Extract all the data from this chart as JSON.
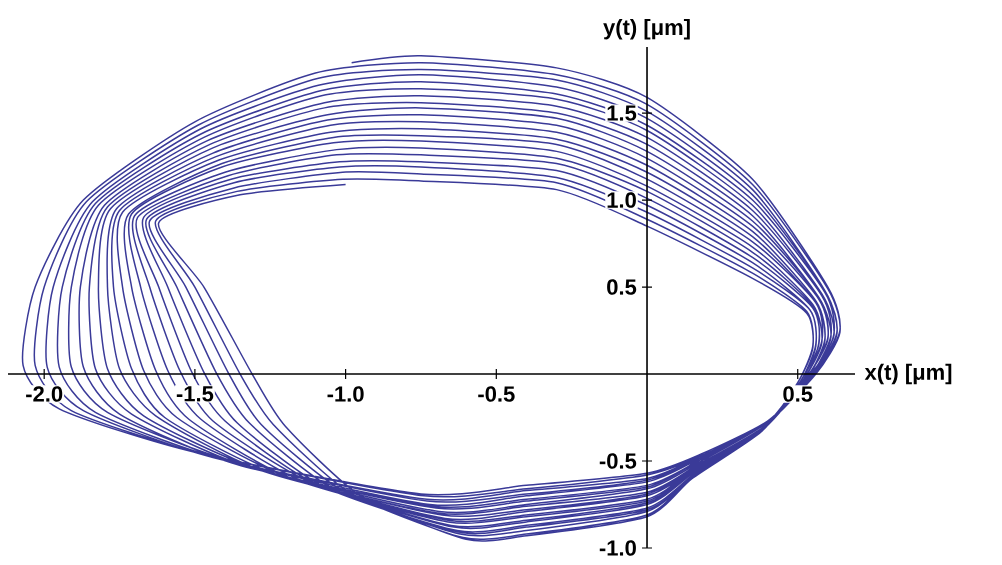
{
  "chart_data": {
    "type": "line",
    "xlabel": "x(t) [μm]",
    "ylabel": "y(t) [μm]",
    "xlim": [
      -2.12,
      0.69
    ],
    "ylim": [
      -1.0,
      1.88
    ],
    "xticks": [
      {
        "value": -2,
        "label": "-2.0"
      },
      {
        "value": -1.5,
        "label": "-1.5"
      },
      {
        "value": -1,
        "label": "-1.0"
      },
      {
        "value": -0.5,
        "label": "-0.5"
      },
      {
        "value": 0.5,
        "label": "0.5"
      }
    ],
    "yticks": [
      {
        "value": -1,
        "label": "-1.0"
      },
      {
        "value": -0.5,
        "label": "-0.5"
      },
      {
        "value": 0.5,
        "label": "0.5"
      },
      {
        "value": 1,
        "label": "1.0"
      },
      {
        "value": 1.5,
        "label": "1.5"
      }
    ],
    "marker": "none",
    "line_style": "solid",
    "series": [
      {
        "color": "#3a3a98",
        "x": [
          -0.98,
          -0.75,
          -0.3,
          0,
          0.35,
          0.6,
          0.64,
          0.56,
          0.4,
          0.18,
          0,
          -0.4,
          -0.75,
          -1.5,
          -1.95,
          -2.07,
          -2.03,
          -1.87,
          -1.5,
          -1.1,
          -0.75,
          -0.3,
          0,
          0.35,
          0.6,
          0.64,
          0.56,
          0.4,
          0.18,
          0,
          -0.4,
          -0.74,
          -1.47,
          -1.91,
          -2.03,
          -2.0,
          -1.86,
          -1.49,
          -1.09,
          -0.75,
          -0.3,
          0,
          0.35,
          0.59,
          0.63,
          0.55,
          0.4,
          0.18,
          0,
          -0.4,
          -0.73,
          -1.44,
          -1.87,
          -1.99,
          -1.97,
          -1.84,
          -1.48,
          -1.09,
          -0.75,
          -0.3,
          0,
          0.35,
          0.59,
          0.63,
          0.55,
          0.4,
          0.18,
          0,
          -0.4,
          -0.73,
          -1.41,
          -1.83,
          -1.95,
          -1.94,
          -1.83,
          -1.48,
          -1.08,
          -0.75,
          -0.3,
          0,
          0.35,
          0.59,
          0.62,
          0.55,
          0.4,
          0.17,
          0,
          -0.4,
          -0.72,
          -1.38,
          -1.79,
          -1.91,
          -1.91,
          -1.82,
          -1.47,
          -1.08,
          -0.75,
          -0.3,
          0,
          0.35,
          0.58,
          0.62,
          0.54,
          0.39,
          0.17,
          0,
          -0.4,
          -0.71,
          -1.36,
          -1.75,
          -1.87,
          -1.88,
          -1.8,
          -1.46,
          -1.07,
          -0.75,
          -0.3,
          0,
          0.35,
          0.58,
          0.61,
          0.54,
          0.39,
          0.17,
          0,
          -0.4,
          -0.7,
          -1.33,
          -1.71,
          -1.83,
          -1.85,
          -1.79,
          -1.45,
          -1.07,
          -0.75,
          -0.3,
          0,
          0.35,
          0.57,
          0.61,
          0.54,
          0.39,
          0.17,
          0,
          -0.4,
          -0.69,
          -1.3,
          -1.67,
          -1.79,
          -1.82,
          -1.78,
          -1.44,
          -1.06,
          -0.75,
          -0.3,
          0,
          0.35,
          0.57,
          0.6,
          0.53,
          0.39,
          0.17,
          0,
          -0.4,
          -0.69,
          -1.27,
          -1.63,
          -1.75,
          -1.79,
          -1.76,
          -1.44,
          -1.06,
          -0.75,
          -0.3,
          0,
          0.35,
          0.57,
          0.6,
          0.53,
          0.39,
          0.17,
          0,
          -0.4,
          -0.68,
          -1.24,
          -1.6,
          -1.71,
          -1.77,
          -1.75,
          -1.43,
          -1.05,
          -0.75,
          -0.3,
          0,
          0.35,
          0.56,
          0.59,
          0.53,
          0.39,
          0.17,
          0,
          -0.4,
          -0.67,
          -1.21,
          -1.56,
          -1.67,
          -1.74,
          -1.74,
          -1.42,
          -1.05,
          -0.75,
          -0.3,
          0,
          0.35,
          0.56,
          0.59,
          0.53,
          0.39,
          0.16,
          0,
          -0.4,
          -0.66,
          -1.18,
          -1.52,
          -1.63,
          -1.71,
          -1.72,
          -1.41,
          -1.04,
          -0.75,
          -0.3,
          0,
          0.35,
          0.56,
          0.58,
          0.52,
          0.39,
          0.16,
          0,
          -0.4,
          -0.66,
          -1.15,
          -1.48,
          -1.59,
          -1.68,
          -1.71,
          -1.41,
          -1.04,
          -0.75,
          -0.3,
          0,
          0.35,
          0.55,
          0.58,
          0.52,
          0.39,
          0.16,
          0,
          -0.4,
          -0.65,
          -1.12,
          -1.44,
          -1.55,
          -1.65,
          -1.7,
          -1.4,
          -1.03,
          -0.75,
          -0.3,
          0,
          0.35,
          0.55,
          0.57,
          0.52,
          0.39,
          0.16,
          0,
          -0.4,
          -0.64,
          -1.1,
          -1.4,
          -1.51,
          -1.62,
          -1.69,
          -1.39,
          -1.03,
          -0.75,
          -0.3,
          0,
          0.35,
          0.55,
          0.57,
          0.51,
          0.38,
          0.16,
          0,
          -0.4,
          -0.63,
          -1.07,
          -1.36,
          -1.47,
          -1.59,
          -1.67,
          -1.38,
          -1.02,
          -0.75,
          -0.3,
          0,
          0.35,
          0.54,
          0.56,
          0.51,
          0.38,
          0.16,
          0,
          -0.4,
          -0.62,
          -1.04,
          -1.32,
          -1.43,
          -1.56,
          -1.66,
          -1.37,
          -1.02,
          -0.75,
          -0.3,
          0,
          0.35,
          0.54,
          0.56,
          0.51,
          0.38,
          0.15,
          0,
          -0.4,
          -0.62,
          -1.01,
          -1.28,
          -1.39,
          -1.53,
          -1.65,
          -1.37,
          -1.01,
          -0.75,
          -0.3,
          0,
          0.35,
          0.53,
          0.55,
          0.5,
          0.38,
          0.15,
          0,
          -0.4,
          -0.61,
          -0.98,
          -1.24,
          -1.35,
          -1.5,
          -1.63,
          -1.36,
          -1.01,
          -0.75,
          -0.3,
          0,
          0.35,
          0.53,
          0.55,
          0.5,
          0.38,
          0.15,
          0,
          -0.4,
          -0.6,
          -0.95,
          -1.2,
          -1.31,
          -1.47,
          -1.62,
          -1.35,
          -1.0
        ],
        "values": [
          1.79,
          1.83,
          1.76,
          1.59,
          1.12,
          0.5,
          0.25,
          0,
          -0.27,
          -0.46,
          -0.57,
          -0.64,
          -0.69,
          -0.45,
          -0.2,
          0.05,
          0.5,
          1.0,
          1.45,
          1.73,
          1.79,
          1.72,
          1.55,
          1.09,
          0.49,
          0.24,
          0,
          -0.27,
          -0.47,
          -0.58,
          -0.66,
          -0.7,
          -0.46,
          -0.21,
          0.05,
          0.5,
          0.99,
          1.43,
          1.7,
          1.75,
          1.69,
          1.51,
          1.06,
          0.48,
          0.24,
          -0.01,
          -0.28,
          -0.47,
          -0.6,
          -0.67,
          -0.72,
          -0.48,
          -0.21,
          0.04,
          0.5,
          0.99,
          1.41,
          1.66,
          1.72,
          1.65,
          1.47,
          1.03,
          0.48,
          0.23,
          -0.01,
          -0.28,
          -0.48,
          -0.61,
          -0.69,
          -0.73,
          -0.49,
          -0.22,
          0.04,
          0.5,
          0.98,
          1.38,
          1.63,
          1.68,
          1.61,
          1.43,
          1.0,
          0.47,
          0.23,
          -0.01,
          -0.28,
          -0.49,
          -0.62,
          -0.7,
          -0.75,
          -0.5,
          -0.22,
          0.04,
          0.5,
          0.97,
          1.36,
          1.6,
          1.64,
          1.58,
          1.4,
          0.97,
          0.46,
          0.22,
          -0.01,
          -0.29,
          -0.5,
          -0.64,
          -0.72,
          -0.76,
          -0.52,
          -0.23,
          0.04,
          0.5,
          0.97,
          1.34,
          1.56,
          1.6,
          1.54,
          1.36,
          0.94,
          0.45,
          0.22,
          -0.02,
          -0.29,
          -0.5,
          -0.65,
          -0.73,
          -0.77,
          -0.53,
          -0.23,
          0.03,
          0.5,
          0.96,
          1.32,
          1.53,
          1.56,
          1.5,
          1.32,
          0.91,
          0.44,
          0.21,
          -0.02,
          -0.29,
          -0.51,
          -0.66,
          -0.75,
          -0.79,
          -0.54,
          -0.24,
          0.03,
          0.5,
          0.95,
          1.3,
          1.49,
          1.53,
          1.47,
          1.28,
          0.88,
          0.44,
          0.21,
          -0.02,
          -0.3,
          -0.52,
          -0.68,
          -0.76,
          -0.8,
          -0.56,
          -0.24,
          0.03,
          0.5,
          0.95,
          1.27,
          1.46,
          1.49,
          1.43,
          1.24,
          0.85,
          0.43,
          0.2,
          -0.02,
          -0.3,
          -0.53,
          -0.69,
          -0.78,
          -0.81,
          -0.57,
          -0.25,
          0.03,
          0.5,
          0.94,
          1.25,
          1.43,
          1.45,
          1.39,
          1.2,
          0.82,
          0.42,
          0.2,
          -0.03,
          -0.3,
          -0.53,
          -0.7,
          -0.79,
          -0.83,
          -0.58,
          -0.25,
          0.02,
          0.5,
          0.93,
          1.23,
          1.39,
          1.41,
          1.35,
          1.16,
          0.79,
          0.41,
          0.19,
          -0.03,
          -0.3,
          -0.54,
          -0.72,
          -0.81,
          -0.84,
          -0.6,
          -0.26,
          0.02,
          0.5,
          0.92,
          1.21,
          1.36,
          1.37,
          1.32,
          1.12,
          0.76,
          0.41,
          0.19,
          -0.03,
          -0.31,
          -0.55,
          -0.73,
          -0.82,
          -0.85,
          -0.61,
          -0.26,
          0.02,
          0.5,
          0.92,
          1.19,
          1.33,
          1.34,
          1.28,
          1.08,
          0.73,
          0.4,
          0.18,
          -0.03,
          -0.31,
          -0.56,
          -0.74,
          -0.84,
          -0.87,
          -0.62,
          -0.27,
          0.02,
          0.5,
          0.91,
          1.16,
          1.29,
          1.3,
          1.24,
          1.05,
          0.7,
          0.39,
          0.18,
          -0.04,
          -0.31,
          -0.56,
          -0.75,
          -0.85,
          -0.88,
          -0.63,
          -0.27,
          0.01,
          0.5,
          0.9,
          1.14,
          1.26,
          1.26,
          1.21,
          1.01,
          0.67,
          0.38,
          0.17,
          -0.04,
          -0.32,
          -0.57,
          -0.77,
          -0.87,
          -0.9,
          -0.65,
          -0.28,
          0.01,
          0.5,
          0.9,
          1.12,
          1.22,
          1.22,
          1.17,
          0.97,
          0.64,
          0.37,
          0.17,
          -0.04,
          -0.32,
          -0.58,
          -0.78,
          -0.88,
          -0.91,
          -0.66,
          -0.28,
          0.01,
          0.5,
          0.89,
          1.1,
          1.19,
          1.19,
          1.13,
          0.93,
          0.61,
          0.37,
          0.16,
          -0.04,
          -0.32,
          -0.59,
          -0.79,
          -0.9,
          -0.92,
          -0.67,
          -0.29,
          0.01,
          0.5,
          0.88,
          1.07,
          1.16,
          1.15,
          1.1,
          0.89,
          0.58,
          0.36,
          0.16,
          -0.05,
          -0.33,
          -0.59,
          -0.81,
          -0.92,
          -0.94,
          -0.69,
          -0.29,
          0,
          0.5,
          0.88,
          1.05,
          1.12,
          1.11,
          1.06,
          0.85,
          0.55,
          0.35,
          0.15,
          -0.05,
          -0.33,
          -0.6,
          -0.82,
          -0.93,
          -0.95,
          -0.7,
          -0.3,
          0,
          0.5,
          0.87,
          1.03,
          1.09
        ]
      }
    ]
  }
}
